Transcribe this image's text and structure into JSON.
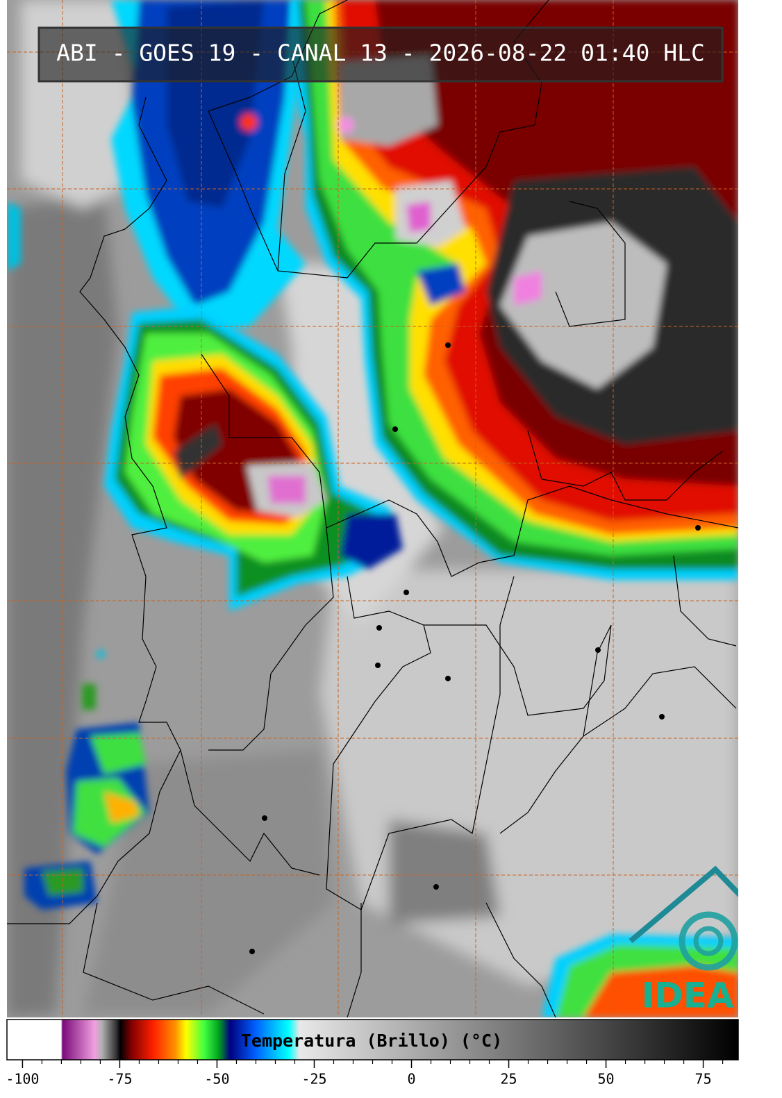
{
  "header": {
    "title": "ABI - GOES 19 - CANAL 13 - 2026-08-22 01:40 HLC"
  },
  "colorbar": {
    "label": "Temperatura (Brillo) (°C)",
    "lim": [
      -104,
      84
    ],
    "ticks": [
      -100,
      -75,
      -50,
      -25,
      0,
      25,
      50,
      75
    ],
    "minor_ticks": [
      -95,
      -90,
      -85,
      -80,
      -70,
      -65,
      -60,
      -55,
      -45,
      -40,
      -35,
      -30,
      -20,
      -15,
      -10,
      -5,
      5,
      10,
      15,
      20,
      30,
      35,
      40,
      45,
      55,
      60,
      65,
      70,
      80
    ]
  },
  "logo": {
    "text": "IDEAM"
  }
}
